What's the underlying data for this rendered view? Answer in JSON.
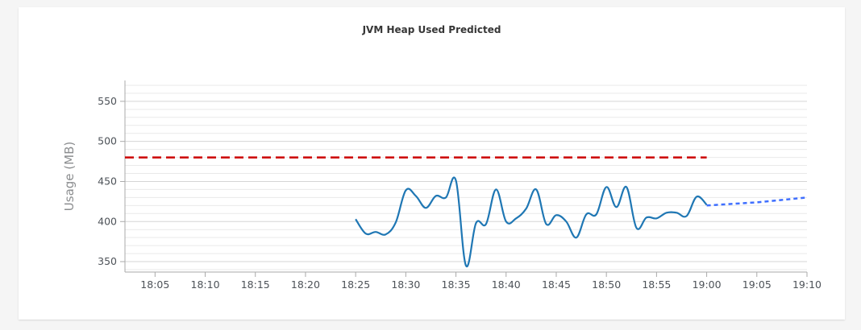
{
  "chart_data": {
    "type": "line",
    "title": "JVM Heap Used Predicted",
    "xlabel": "",
    "ylabel": "Usage (MB)",
    "xlim": [
      "18:02",
      "19:10"
    ],
    "ylim": [
      337,
      576
    ],
    "grid": true,
    "x_ticks": [
      "18:05",
      "18:10",
      "18:15",
      "18:20",
      "18:25",
      "18:30",
      "18:35",
      "18:40",
      "18:45",
      "18:50",
      "18:55",
      "19:00",
      "19:05",
      "19:10"
    ],
    "y_ticks": [
      350,
      400,
      450,
      500,
      550
    ],
    "colors": {
      "actual": "#1f77b4",
      "predicted": "#3f6fff",
      "threshold": "#cc0000"
    },
    "series": [
      {
        "style": "solid",
        "x": [
          "18:25",
          "18:26",
          "18:27",
          "18:28",
          "18:29",
          "18:30",
          "18:31",
          "18:32",
          "18:33",
          "18:34",
          "18:35",
          "18:36",
          "18:37",
          "18:38",
          "18:39",
          "18:40",
          "18:41",
          "18:42",
          "18:43",
          "18:44",
          "18:45",
          "18:46",
          "18:47",
          "18:48",
          "18:49",
          "18:50",
          "18:51",
          "18:52",
          "18:53",
          "18:54",
          "18:55",
          "18:56",
          "18:57",
          "18:58",
          "18:59",
          "19:00"
        ],
        "values": [
          403,
          385,
          387,
          384,
          399,
          439,
          432,
          417,
          432,
          430,
          451,
          345,
          398,
          397,
          440,
          400,
          404,
          416,
          440,
          397,
          408,
          400,
          380,
          409,
          409,
          443,
          418,
          443,
          392,
          405,
          404,
          411,
          411,
          407,
          431,
          421
        ]
      },
      {
        "style": "dotted",
        "x": [
          "19:00",
          "19:05",
          "19:10"
        ],
        "values": [
          420,
          424,
          430
        ]
      },
      {
        "style": "dashed",
        "x": [
          "18:02",
          "19:00"
        ],
        "values": [
          480,
          480
        ]
      }
    ]
  }
}
